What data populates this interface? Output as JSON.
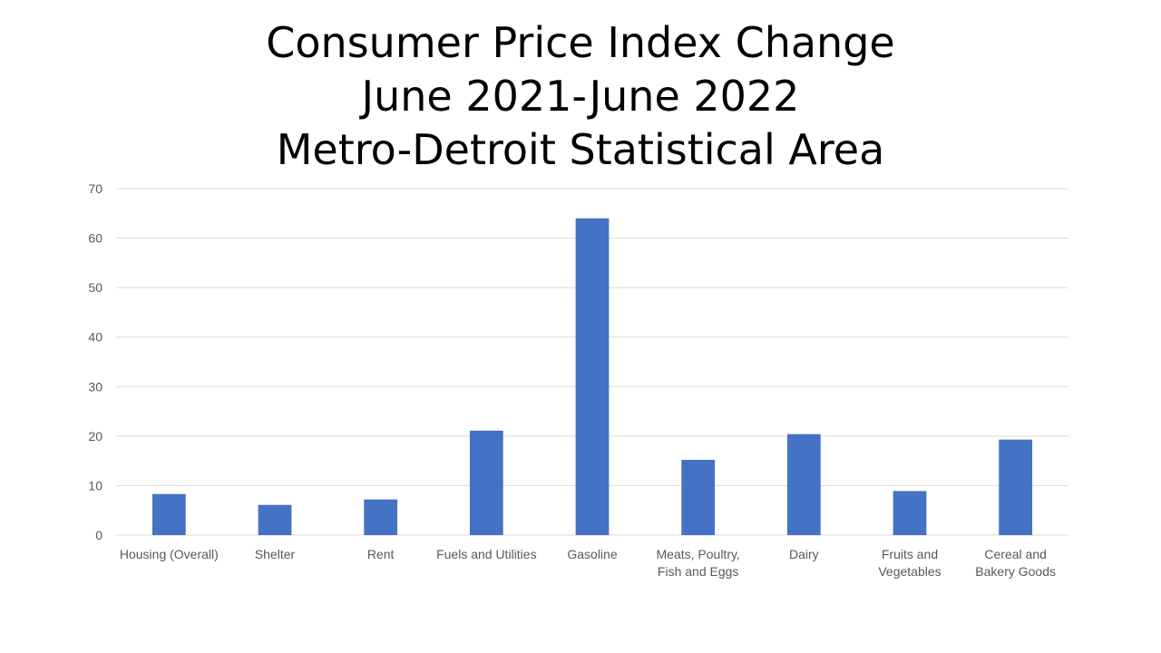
{
  "chart_data": {
    "type": "bar",
    "title_lines": [
      "Consumer Price Index Change",
      "June 2021-June 2022",
      "Metro-Detroit Statistical Area"
    ],
    "categories": [
      [
        "Housing (Overall)"
      ],
      [
        "Shelter"
      ],
      [
        "Rent"
      ],
      [
        "Fuels and Utilities"
      ],
      [
        "Gasoline"
      ],
      [
        "Meats, Poultry,",
        "Fish and Eggs"
      ],
      [
        "Dairy"
      ],
      [
        "Fruits and",
        "Vegetables"
      ],
      [
        "Cereal and",
        "Bakery Goods"
      ]
    ],
    "values": [
      8.3,
      6.1,
      7.2,
      21.1,
      64.0,
      15.2,
      20.4,
      8.9,
      19.3
    ],
    "ylim": [
      0,
      70
    ],
    "yticks": [
      0,
      10,
      20,
      30,
      40,
      50,
      60,
      70
    ],
    "grid": true,
    "bar_color": "#4472C4"
  }
}
